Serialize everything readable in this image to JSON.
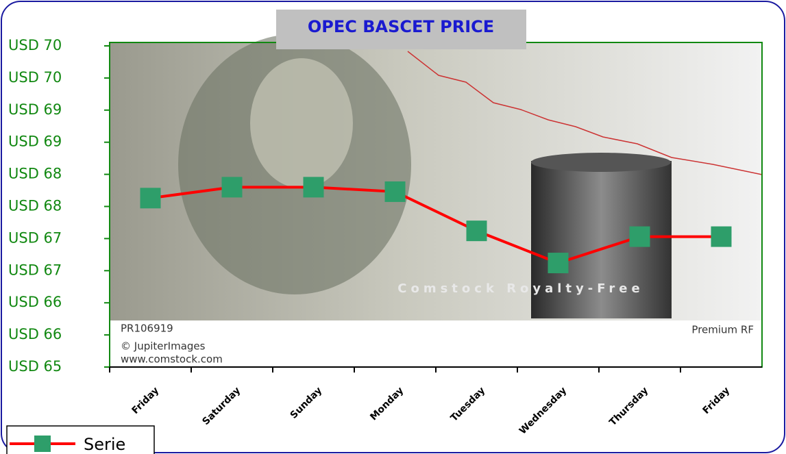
{
  "chart_data": {
    "type": "line",
    "title": "OPEC BASCET PRICE",
    "categories": [
      "Friday",
      "Saturday",
      "Sunday",
      "Monday",
      "Tuesday",
      "Wednesday",
      "Thursday",
      "Friday"
    ],
    "series": [
      {
        "name": "Serie",
        "color": "#ff0000",
        "marker_color": "#2e9e6a",
        "values": [
          67.63,
          67.8,
          67.8,
          67.73,
          67.12,
          66.62,
          67.03,
          67.03
        ]
      }
    ],
    "ylim": [
      65,
      70
    ],
    "yticks": [
      {
        "value": 70,
        "label": "USD 70"
      },
      {
        "value": 69.5,
        "label": "USD 70"
      },
      {
        "value": 69,
        "label": "USD 69"
      },
      {
        "value": 68.5,
        "label": "USD 69"
      },
      {
        "value": 68,
        "label": "USD 68"
      },
      {
        "value": 67.5,
        "label": "USD 68"
      },
      {
        "value": 67,
        "label": "USD 67"
      },
      {
        "value": 66.5,
        "label": "USD 67"
      },
      {
        "value": 66,
        "label": "USD 66"
      },
      {
        "value": 65.5,
        "label": "USD 66"
      },
      {
        "value": 65,
        "label": "USD 65"
      }
    ],
    "annotations": [
      "PR106919",
      "© JupiterImages",
      "www.comstock.com",
      "Premium RF",
      "Comstock Royalty-Free"
    ]
  }
}
